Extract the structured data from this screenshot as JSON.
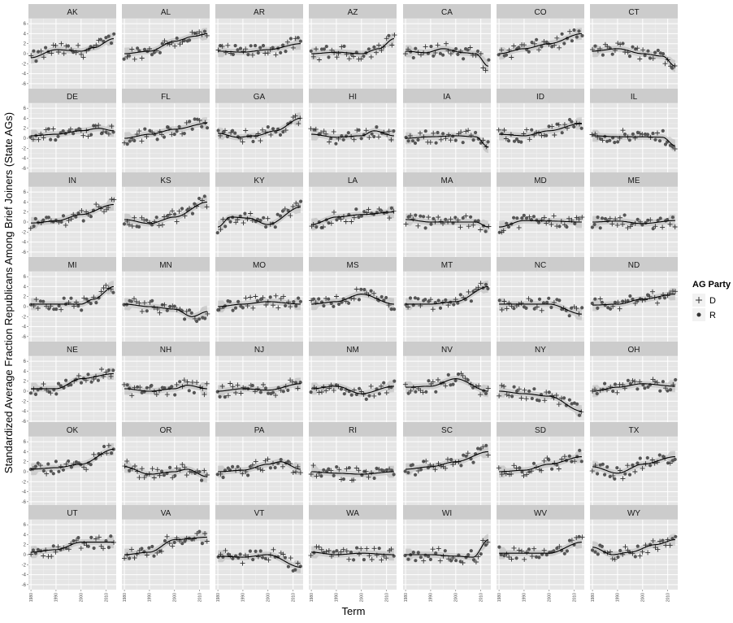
{
  "chart_data": {
    "type": "scatter",
    "subtype": "faceted scatter with loess smooth and confidence band",
    "xlabel": "Term",
    "ylabel": "Standardized Average Fraction Republicans Among Brief Joiners (State AGs)",
    "x_ticks": [
      "1980",
      "1990",
      "2000",
      "2010"
    ],
    "y_ticks": [
      6,
      4,
      2,
      0,
      -2,
      -4,
      -6
    ],
    "xlim": [
      1979,
      2014
    ],
    "ylim": [
      -7,
      7
    ],
    "grid": true,
    "legend": {
      "title": "AG Party",
      "placement": "right",
      "entries": [
        {
          "label": "D",
          "marker": "plus"
        },
        {
          "label": "R",
          "marker": "circle"
        }
      ]
    },
    "colors": {
      "panel_bg": "#e5e5e5",
      "strip_bg": "#cccccc",
      "grid_major": "#ffffff",
      "grid_minor": "#f2f2f2",
      "points": "#333333",
      "smooth": "#000000",
      "band": "#999999"
    },
    "facets": [
      {
        "state": "AK",
        "trend": [
          [
            1980,
            -0.8
          ],
          [
            1990,
            0.8
          ],
          [
            2000,
            0.5
          ],
          [
            2005,
            1.2
          ],
          [
            2013,
            3
          ]
        ]
      },
      {
        "state": "AL",
        "trend": [
          [
            1980,
            0
          ],
          [
            1990,
            0.5
          ],
          [
            2000,
            2.5
          ],
          [
            2008,
            3.5
          ],
          [
            2013,
            4
          ]
        ]
      },
      {
        "state": "AR",
        "trend": [
          [
            1980,
            0.5
          ],
          [
            1990,
            0.3
          ],
          [
            2000,
            0.8
          ],
          [
            2013,
            2
          ]
        ]
      },
      {
        "state": "AZ",
        "trend": [
          [
            1980,
            0
          ],
          [
            1990,
            0.3
          ],
          [
            2000,
            0
          ],
          [
            2007,
            1
          ],
          [
            2013,
            3
          ]
        ]
      },
      {
        "state": "CA",
        "trend": [
          [
            1980,
            0.5
          ],
          [
            1988,
            0.2
          ],
          [
            1995,
            1
          ],
          [
            2003,
            0.2
          ],
          [
            2008,
            0
          ],
          [
            2013,
            -2.5
          ]
        ]
      },
      {
        "state": "CO",
        "trend": [
          [
            1980,
            0
          ],
          [
            1990,
            1
          ],
          [
            2000,
            2
          ],
          [
            2013,
            4
          ]
        ]
      },
      {
        "state": "CT",
        "trend": [
          [
            1980,
            0.5
          ],
          [
            1990,
            1
          ],
          [
            2000,
            0
          ],
          [
            2008,
            -0.5
          ],
          [
            2013,
            -2.5
          ]
        ]
      },
      {
        "state": "DE",
        "trend": [
          [
            1980,
            0.5
          ],
          [
            1990,
            0.8
          ],
          [
            2000,
            1.5
          ],
          [
            2007,
            2
          ],
          [
            2013,
            1.5
          ]
        ]
      },
      {
        "state": "FL",
        "trend": [
          [
            1980,
            0
          ],
          [
            1990,
            0.8
          ],
          [
            2000,
            1.8
          ],
          [
            2013,
            3
          ]
        ]
      },
      {
        "state": "GA",
        "trend": [
          [
            1980,
            1
          ],
          [
            1988,
            0.2
          ],
          [
            1995,
            0.5
          ],
          [
            2003,
            1.5
          ],
          [
            2013,
            4
          ]
        ]
      },
      {
        "state": "HI",
        "trend": [
          [
            1980,
            0.8
          ],
          [
            1990,
            0.2
          ],
          [
            2000,
            0.5
          ],
          [
            2005,
            1.5
          ],
          [
            2013,
            0.5
          ]
        ]
      },
      {
        "state": "IA",
        "trend": [
          [
            1980,
            0
          ],
          [
            1990,
            0.3
          ],
          [
            2000,
            0.5
          ],
          [
            2008,
            0.3
          ],
          [
            2013,
            -1.8
          ]
        ]
      },
      {
        "state": "ID",
        "trend": [
          [
            1980,
            0.8
          ],
          [
            1990,
            0.5
          ],
          [
            2000,
            1.5
          ],
          [
            2013,
            3
          ]
        ]
      },
      {
        "state": "IL",
        "trend": [
          [
            1980,
            0.5
          ],
          [
            1990,
            0.3
          ],
          [
            2000,
            0.3
          ],
          [
            2008,
            0.2
          ],
          [
            2013,
            -1.5
          ]
        ]
      },
      {
        "state": "IN",
        "trend": [
          [
            1980,
            -0.2
          ],
          [
            1990,
            0.2
          ],
          [
            2000,
            1.5
          ],
          [
            2013,
            3.5
          ]
        ]
      },
      {
        "state": "KS",
        "trend": [
          [
            1980,
            0.5
          ],
          [
            1990,
            -0.3
          ],
          [
            2000,
            1
          ],
          [
            2013,
            4
          ]
        ]
      },
      {
        "state": "KY",
        "trend": [
          [
            1980,
            -1
          ],
          [
            1985,
            1
          ],
          [
            1992,
            0.8
          ],
          [
            2000,
            -0.5
          ],
          [
            2013,
            3
          ]
        ]
      },
      {
        "state": "LA",
        "trend": [
          [
            1980,
            -0.5
          ],
          [
            1990,
            1
          ],
          [
            2000,
            1.5
          ],
          [
            2013,
            2
          ]
        ]
      },
      {
        "state": "MA",
        "trend": [
          [
            1980,
            0.5
          ],
          [
            1990,
            0
          ],
          [
            2000,
            0
          ],
          [
            2008,
            0
          ],
          [
            2013,
            -1
          ]
        ]
      },
      {
        "state": "MD",
        "trend": [
          [
            1980,
            -1
          ],
          [
            1990,
            0.3
          ],
          [
            2000,
            0.2
          ],
          [
            2013,
            0
          ]
        ]
      },
      {
        "state": "ME",
        "trend": [
          [
            1980,
            0
          ],
          [
            1990,
            0.2
          ],
          [
            2000,
            -0.3
          ],
          [
            2013,
            0.3
          ]
        ]
      },
      {
        "state": "MI",
        "trend": [
          [
            1980,
            0.5
          ],
          [
            1990,
            0.5
          ],
          [
            2000,
            0.5
          ],
          [
            2005,
            1.5
          ],
          [
            2013,
            4
          ]
        ]
      },
      {
        "state": "MN",
        "trend": [
          [
            1980,
            0.5
          ],
          [
            1990,
            0
          ],
          [
            2000,
            -0.5
          ],
          [
            2007,
            -2
          ],
          [
            2013,
            -1
          ]
        ]
      },
      {
        "state": "MO",
        "trend": [
          [
            1980,
            0
          ],
          [
            1990,
            0.5
          ],
          [
            2000,
            1
          ],
          [
            2013,
            0.5
          ]
        ]
      },
      {
        "state": "MS",
        "trend": [
          [
            1980,
            0.5
          ],
          [
            1990,
            1
          ],
          [
            2000,
            2.5
          ],
          [
            2013,
            0.5
          ]
        ]
      },
      {
        "state": "MT",
        "trend": [
          [
            1980,
            0.5
          ],
          [
            1990,
            0.5
          ],
          [
            2000,
            1
          ],
          [
            2013,
            4
          ]
        ]
      },
      {
        "state": "NC",
        "trend": [
          [
            1980,
            0.5
          ],
          [
            1990,
            0.5
          ],
          [
            2000,
            0.5
          ],
          [
            2013,
            -1.5
          ]
        ]
      },
      {
        "state": "ND",
        "trend": [
          [
            1980,
            0.3
          ],
          [
            1990,
            0.5
          ],
          [
            2000,
            1.5
          ],
          [
            2013,
            2.5
          ]
        ]
      },
      {
        "state": "NE",
        "trend": [
          [
            1980,
            0.5
          ],
          [
            1990,
            0.5
          ],
          [
            2000,
            2.5
          ],
          [
            2013,
            3.5
          ]
        ]
      },
      {
        "state": "NH",
        "trend": [
          [
            1980,
            0.5
          ],
          [
            1990,
            0
          ],
          [
            2000,
            0.5
          ],
          [
            2005,
            1.2
          ],
          [
            2013,
            0.5
          ]
        ]
      },
      {
        "state": "NJ",
        "trend": [
          [
            1980,
            0
          ],
          [
            1990,
            0.5
          ],
          [
            2000,
            0.2
          ],
          [
            2013,
            1.5
          ]
        ]
      },
      {
        "state": "NM",
        "trend": [
          [
            1980,
            0.5
          ],
          [
            1990,
            1
          ],
          [
            2000,
            -0.5
          ],
          [
            2013,
            1
          ]
        ]
      },
      {
        "state": "NV",
        "trend": [
          [
            1980,
            0.8
          ],
          [
            1990,
            1
          ],
          [
            2000,
            2.5
          ],
          [
            2013,
            0
          ]
        ]
      },
      {
        "state": "NY",
        "trend": [
          [
            1980,
            0
          ],
          [
            1990,
            -0.5
          ],
          [
            2000,
            -1
          ],
          [
            2013,
            -4
          ]
        ]
      },
      {
        "state": "OH",
        "trend": [
          [
            1980,
            0
          ],
          [
            1990,
            0.8
          ],
          [
            2000,
            1.5
          ],
          [
            2013,
            1
          ]
        ]
      },
      {
        "state": "OK",
        "trend": [
          [
            1980,
            0.5
          ],
          [
            1990,
            0.8
          ],
          [
            2000,
            1.5
          ],
          [
            2013,
            4.5
          ]
        ]
      },
      {
        "state": "OR",
        "trend": [
          [
            1980,
            1
          ],
          [
            1990,
            -0.5
          ],
          [
            2000,
            0
          ],
          [
            2005,
            0.5
          ],
          [
            2013,
            -1
          ]
        ]
      },
      {
        "state": "PA",
        "trend": [
          [
            1980,
            0
          ],
          [
            1990,
            0.3
          ],
          [
            2000,
            1.5
          ],
          [
            2005,
            2
          ],
          [
            2013,
            0.5
          ]
        ]
      },
      {
        "state": "RI",
        "trend": [
          [
            1980,
            0
          ],
          [
            1990,
            -0.3
          ],
          [
            2000,
            -0.5
          ],
          [
            2013,
            0
          ]
        ]
      },
      {
        "state": "SC",
        "trend": [
          [
            1980,
            0.5
          ],
          [
            1990,
            1
          ],
          [
            2000,
            2
          ],
          [
            2013,
            4
          ]
        ]
      },
      {
        "state": "SD",
        "trend": [
          [
            1980,
            0
          ],
          [
            1990,
            0.3
          ],
          [
            2000,
            1.5
          ],
          [
            2013,
            3
          ]
        ]
      },
      {
        "state": "TX",
        "trend": [
          [
            1980,
            1
          ],
          [
            1990,
            -0.3
          ],
          [
            2000,
            1.5
          ],
          [
            2013,
            3
          ]
        ]
      },
      {
        "state": "UT",
        "trend": [
          [
            1980,
            0.5
          ],
          [
            1990,
            1
          ],
          [
            2000,
            2.5
          ],
          [
            2013,
            2.5
          ]
        ]
      },
      {
        "state": "VA",
        "trend": [
          [
            1980,
            0
          ],
          [
            1990,
            0.5
          ],
          [
            2000,
            3
          ],
          [
            2013,
            3.5
          ]
        ]
      },
      {
        "state": "VT",
        "trend": [
          [
            1980,
            -0.3
          ],
          [
            1990,
            -0.5
          ],
          [
            2000,
            0
          ],
          [
            2013,
            -2.5
          ]
        ]
      },
      {
        "state": "WA",
        "trend": [
          [
            1980,
            0.5
          ],
          [
            1990,
            0
          ],
          [
            2000,
            0.3
          ],
          [
            2013,
            0
          ]
        ]
      },
      {
        "state": "WI",
        "trend": [
          [
            1980,
            0
          ],
          [
            1990,
            0
          ],
          [
            2000,
            -0.3
          ],
          [
            2007,
            -0.5
          ],
          [
            2013,
            3
          ]
        ]
      },
      {
        "state": "WV",
        "trend": [
          [
            1980,
            0.3
          ],
          [
            1990,
            0.3
          ],
          [
            2000,
            0.3
          ],
          [
            2013,
            2.5
          ]
        ]
      },
      {
        "state": "WY",
        "trend": [
          [
            1980,
            1.5
          ],
          [
            1988,
            0
          ],
          [
            1995,
            0.5
          ],
          [
            2005,
            2
          ],
          [
            2013,
            3
          ]
        ]
      }
    ]
  }
}
